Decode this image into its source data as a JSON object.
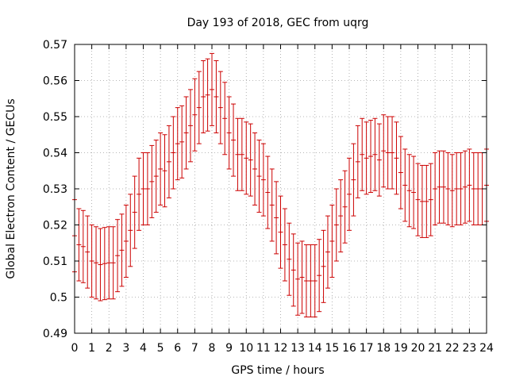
{
  "chart_data": {
    "type": "line",
    "title": "Day 193 of 2018, GEC from uqrg",
    "xlabel": "GPS time / hours",
    "ylabel": "Global Electron Content / GECUs",
    "xlim": [
      0,
      24
    ],
    "ylim": [
      0.49,
      0.57
    ],
    "x_ticks": [
      "0",
      "1",
      "2",
      "3",
      "4",
      "5",
      "6",
      "7",
      "8",
      "9",
      "10",
      "11",
      "12",
      "13",
      "14",
      "15",
      "16",
      "17",
      "18",
      "19",
      "20",
      "21",
      "22",
      "23",
      "24"
    ],
    "y_ticks": [
      "0.49",
      "0.5",
      "0.51",
      "0.52",
      "0.53",
      "0.54",
      "0.55",
      "0.56",
      "0.57"
    ],
    "grid": true,
    "colors": {
      "series": "#cc0000",
      "grid": "#a0a0a0",
      "axis": "#000000"
    },
    "series": [
      {
        "error_bars": true,
        "error": 0.01,
        "x": [
          0,
          0.25,
          0.5,
          0.75,
          1,
          1.25,
          1.5,
          1.75,
          2,
          2.25,
          2.5,
          2.75,
          3,
          3.25,
          3.5,
          3.75,
          4,
          4.25,
          4.5,
          4.75,
          5,
          5.25,
          5.5,
          5.75,
          6,
          6.25,
          6.5,
          6.75,
          7,
          7.25,
          7.5,
          7.75,
          8,
          8.25,
          8.5,
          8.75,
          9,
          9.25,
          9.5,
          9.75,
          10,
          10.25,
          10.5,
          10.75,
          11,
          11.25,
          11.5,
          11.75,
          12,
          12.25,
          12.5,
          12.75,
          13,
          13.25,
          13.5,
          13.75,
          14,
          14.25,
          14.5,
          14.75,
          15,
          15.25,
          15.5,
          15.75,
          16,
          16.25,
          16.5,
          16.75,
          17,
          17.25,
          17.5,
          17.75,
          18,
          18.25,
          18.5,
          18.75,
          19,
          19.25,
          19.5,
          19.75,
          20,
          20.25,
          20.5,
          20.75,
          21,
          21.25,
          21.5,
          21.75,
          22,
          22.25,
          22.5,
          22.75,
          23,
          23.25,
          23.5,
          23.75,
          24
        ],
        "values": [
          0.517,
          0.5145,
          0.514,
          0.5125,
          0.51,
          0.5095,
          0.509,
          0.5093,
          0.5095,
          0.5095,
          0.5115,
          0.513,
          0.5155,
          0.5185,
          0.5235,
          0.5285,
          0.53,
          0.53,
          0.532,
          0.5335,
          0.5355,
          0.535,
          0.5375,
          0.54,
          0.5425,
          0.543,
          0.5455,
          0.5475,
          0.5505,
          0.5525,
          0.5555,
          0.556,
          0.5575,
          0.5555,
          0.5525,
          0.5495,
          0.5455,
          0.5435,
          0.5395,
          0.5395,
          0.5385,
          0.538,
          0.5355,
          0.5335,
          0.5325,
          0.529,
          0.5255,
          0.522,
          0.518,
          0.5145,
          0.5105,
          0.5075,
          0.505,
          0.5055,
          0.5045,
          0.5045,
          0.5045,
          0.506,
          0.5085,
          0.5125,
          0.5155,
          0.52,
          0.5225,
          0.525,
          0.5285,
          0.5325,
          0.5375,
          0.5395,
          0.5385,
          0.539,
          0.5395,
          0.538,
          0.5405,
          0.54,
          0.54,
          0.5385,
          0.5345,
          0.531,
          0.5295,
          0.529,
          0.527,
          0.5265,
          0.5265,
          0.527,
          0.53,
          0.5305,
          0.5305,
          0.53,
          0.5295,
          0.53,
          0.53,
          0.5305,
          0.531,
          0.53,
          0.53,
          0.53,
          0.531
        ]
      }
    ]
  }
}
